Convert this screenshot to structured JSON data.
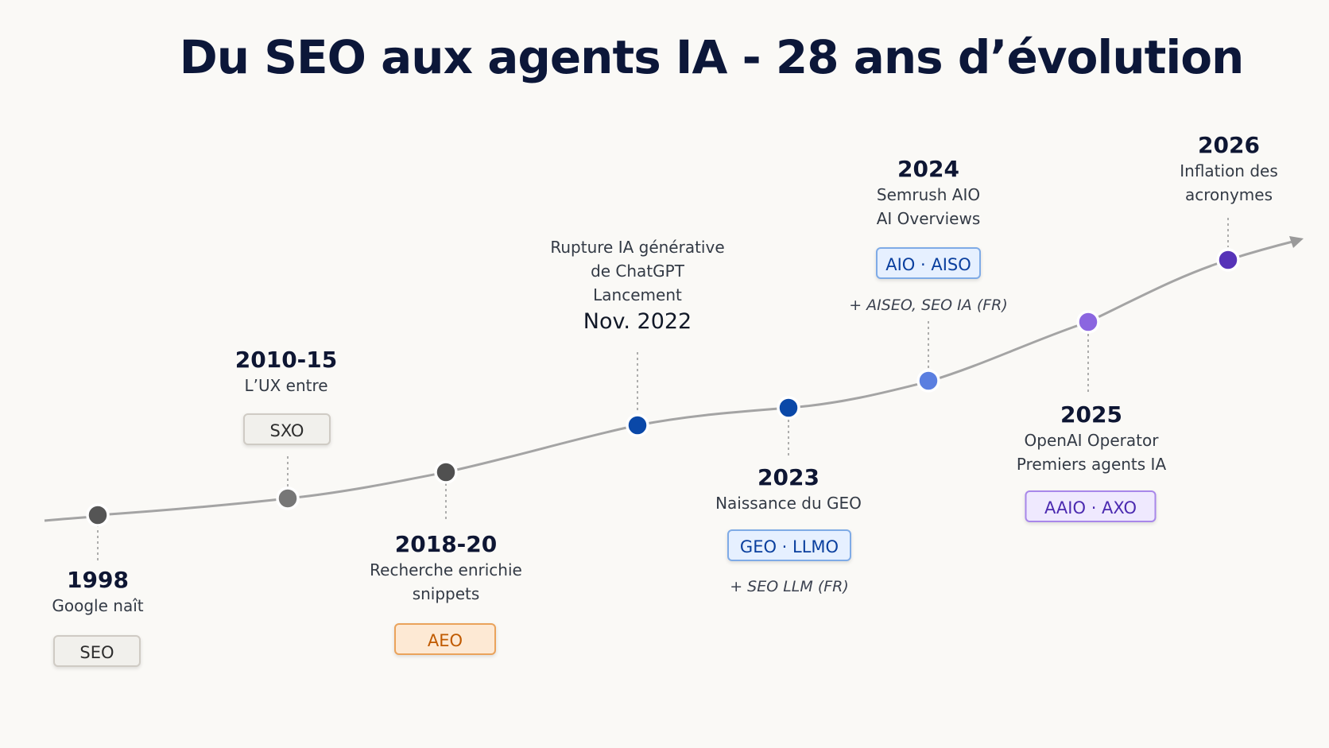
{
  "title": "Du SEO aux agents IA - 28 ans d’évolution",
  "colors": {
    "line": "#a4a4a4",
    "connector": "#9b9b9b",
    "gray_dark": "#555555",
    "gray_mid": "#777777",
    "blue_dark": "#0a48a8",
    "blue_mid": "#5b7fe0",
    "purple_light": "#8b66e0",
    "purple_dark": "#5633b8"
  },
  "milestones": [
    {
      "year": "1998",
      "desc": [
        "Google naît"
      ],
      "badge": "SEO"
    },
    {
      "year": "2010-15",
      "desc": [
        "L’UX entre"
      ],
      "badge": "SXO"
    },
    {
      "year": "2018-20",
      "desc": [
        "Recherche enrichie",
        "snippets"
      ],
      "badge": "AEO"
    },
    {
      "year": "Nov. 2022",
      "desc": [
        "Rupture IA générative",
        "de ChatGPT",
        "Lancement"
      ]
    },
    {
      "year": "2023",
      "desc": [
        "Naissance du GEO"
      ],
      "badge": "GEO · LLMO",
      "note": "+ SEO LLM (FR)"
    },
    {
      "year": "2024",
      "desc": [
        "Semrush AIO",
        "AI Overviews"
      ],
      "badge": "AIO · AISO",
      "note": "+ AISEO, SEO IA (FR)"
    },
    {
      "year": "2025",
      "desc": [
        "OpenAI Operator",
        "Premiers agents IA"
      ],
      "badge": "AAIO · AXO"
    },
    {
      "year": "2026",
      "desc": [
        "Inflation des",
        "acronymes"
      ]
    }
  ]
}
